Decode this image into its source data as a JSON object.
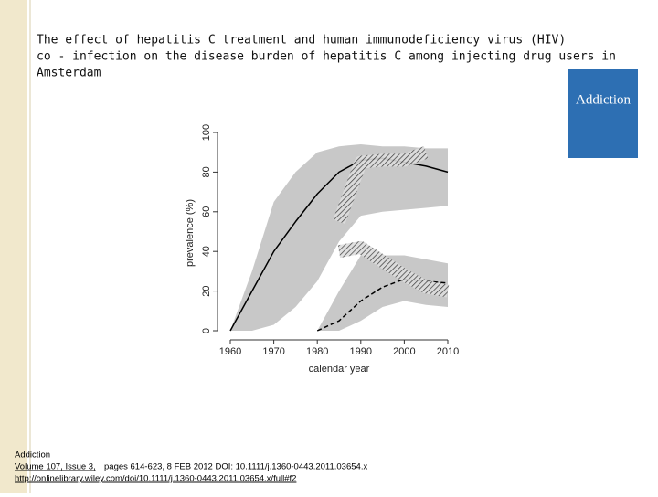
{
  "slide": {
    "title_lines": [
      "The effect of hepatitis C treatment and human immunodeficiency virus (HIV)",
      "co - infection on the disease burden of hepatitis C among injecting drug users in",
      "Amsterdam"
    ],
    "cover_title": "Addiction",
    "footer": {
      "journal": "Addiction",
      "issue": "Volume 107, Issue 3,",
      "details": "pages 614-623, 8 FEB 2012 DOI: 10.1111/j.1360-0443.2011.03654.x",
      "url": "http://onlinelibrary.wiley.com/doi/10.1111/j.1360-0443.2011.03654.x/full#f2"
    }
  },
  "chart_data": {
    "type": "line",
    "x_label": "calendar year",
    "y_label": "prevalence (%)",
    "x": [
      1960,
      1965,
      1970,
      1975,
      1980,
      1985,
      1990,
      1995,
      2000,
      2005,
      2010
    ],
    "series": [
      {
        "color": "#000000",
        "style": "solid",
        "values": [
          0,
          20,
          40,
          55,
          69,
          80,
          86,
          87,
          85,
          83,
          80
        ],
        "lower": [
          0,
          0,
          3,
          12,
          25,
          45,
          58,
          60,
          61,
          62,
          63
        ],
        "upper": [
          0,
          30,
          65,
          80,
          90,
          93,
          94,
          93,
          93,
          92,
          92
        ]
      },
      {
        "color": "#000000",
        "style": "dashed",
        "values": [
          null,
          null,
          null,
          null,
          0,
          5,
          15,
          22,
          26,
          25,
          24
        ],
        "lower": [
          null,
          null,
          null,
          null,
          0,
          0,
          5,
          12,
          15,
          13,
          12
        ],
        "upper": [
          null,
          null,
          null,
          null,
          0,
          20,
          38,
          38,
          38,
          36,
          34
        ]
      },
      {
        "color": "#555555",
        "style": "hatched",
        "values": [
          null,
          null,
          null,
          null,
          null,
          55,
          85,
          86,
          86,
          90,
          null
        ]
      },
      {
        "color": "#555555",
        "style": "hatched",
        "values": [
          null,
          null,
          null,
          null,
          null,
          40,
          42,
          35,
          28,
          22,
          20
        ]
      }
    ],
    "xlim": [
      1960,
      2010
    ],
    "xticks": [
      1960,
      1970,
      1980,
      1990,
      2000,
      2010
    ],
    "ylim": [
      0,
      100
    ],
    "yticks": [
      0,
      20,
      40,
      60,
      80,
      100
    ],
    "band_color": "#c8c8c8"
  }
}
